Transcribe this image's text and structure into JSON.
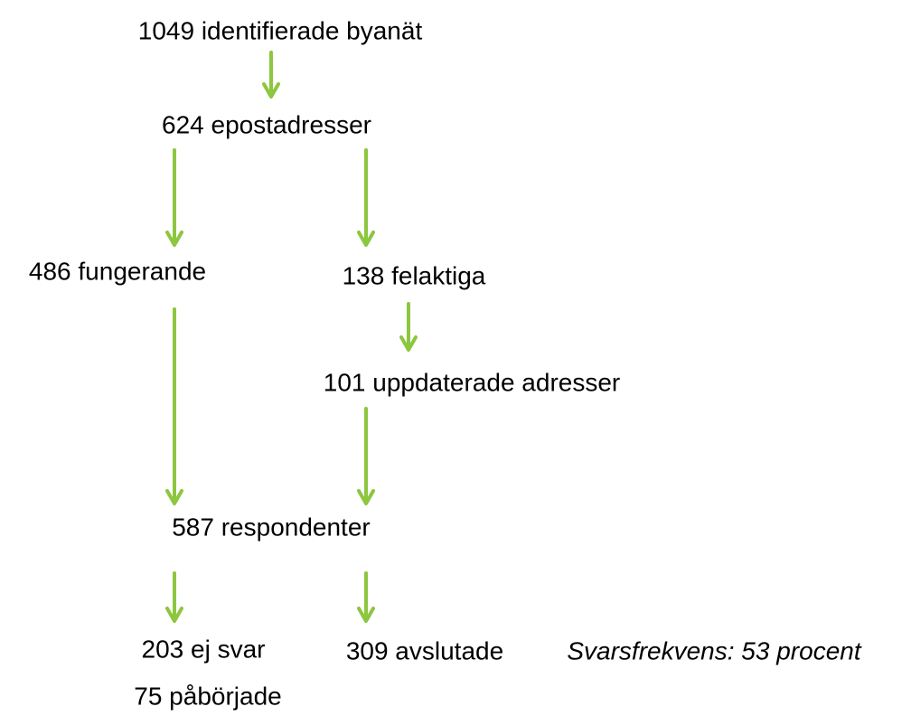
{
  "nodes": [
    {
      "label": "1049 identifierade byanät"
    },
    {
      "label": "624 epostadresser"
    },
    {
      "label": "486 fungerande"
    },
    {
      "label": "138 felaktiga"
    },
    {
      "label": "101 uppdaterade adresser"
    },
    {
      "label": "587 respondenter"
    },
    {
      "label": "203 ej svar"
    },
    {
      "label": "309 avslutade"
    },
    {
      "label": "75 påbörjade"
    }
  ],
  "annotation": "Svarsfrekvens: 53 procent"
}
